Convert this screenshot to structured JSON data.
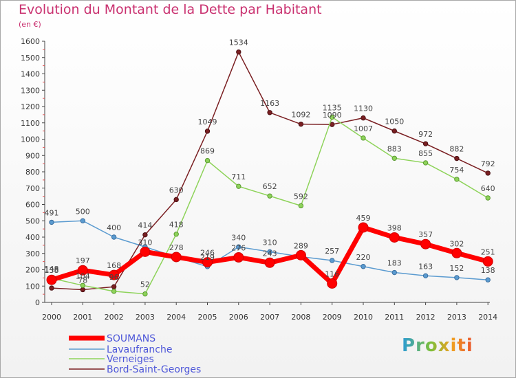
{
  "title": "Evolution du Montant de la Dette par Habitant",
  "subtitle": "(en €)",
  "logo": "Proxiti",
  "chart_data": {
    "type": "line",
    "categories": [
      "2000",
      "2001",
      "2002",
      "2003",
      "2004",
      "2005",
      "2006",
      "2007",
      "2008",
      "2009",
      "2010",
      "2011",
      "2012",
      "2013",
      "2014"
    ],
    "ylim": [
      0,
      1600
    ],
    "yticks": [
      0,
      100,
      200,
      300,
      400,
      500,
      600,
      700,
      800,
      900,
      1000,
      1100,
      1200,
      1300,
      1400,
      1500,
      1600
    ],
    "grid": false,
    "legend_position": "bottom-left",
    "series": [
      {
        "name": "SOUMANS",
        "color": "#ff0000",
        "values": [
          138,
          197,
          168,
          310,
          278,
          246,
          276,
          243,
          289,
          116,
          459,
          398,
          357,
          302,
          251
        ],
        "labels": [
          "138",
          "197",
          "168",
          "310",
          "278",
          "246",
          "276",
          "243",
          "289",
          "116",
          "459",
          "398",
          "357",
          "302",
          "251"
        ]
      },
      {
        "name": "Lavaufranche",
        "color": "#5b9bd0",
        "values": [
          491,
          500,
          400,
          340,
          278,
          219,
          340,
          310,
          280,
          257,
          220,
          183,
          163,
          152,
          138
        ],
        "labels": [
          "491",
          "500",
          "400",
          "",
          "",
          "219",
          "340",
          "310",
          "",
          "257",
          "220",
          "183",
          "163",
          "152",
          "138"
        ]
      },
      {
        "name": "Verneiges",
        "color": "#8ed35a",
        "values": [
          148,
          104,
          68,
          52,
          418,
          869,
          711,
          652,
          592,
          1135,
          1007,
          883,
          855,
          754,
          640
        ],
        "labels": [
          "148",
          "104",
          "",
          "52",
          "418",
          "869",
          "711",
          "652",
          "592",
          "1135",
          "1007",
          "883",
          "855",
          "754",
          "640"
        ]
      },
      {
        "name": "Bord-Saint-Georges",
        "color": "#7a1f22",
        "values": [
          88,
          78,
          96,
          414,
          630,
          1049,
          1534,
          1163,
          1092,
          1090,
          1130,
          1050,
          972,
          882,
          792
        ],
        "labels": [
          "",
          "78",
          "96",
          "414",
          "630",
          "1049",
          "1534",
          "1163",
          "1092",
          "1090",
          "1130",
          "1050",
          "972",
          "882",
          "792"
        ]
      }
    ]
  }
}
